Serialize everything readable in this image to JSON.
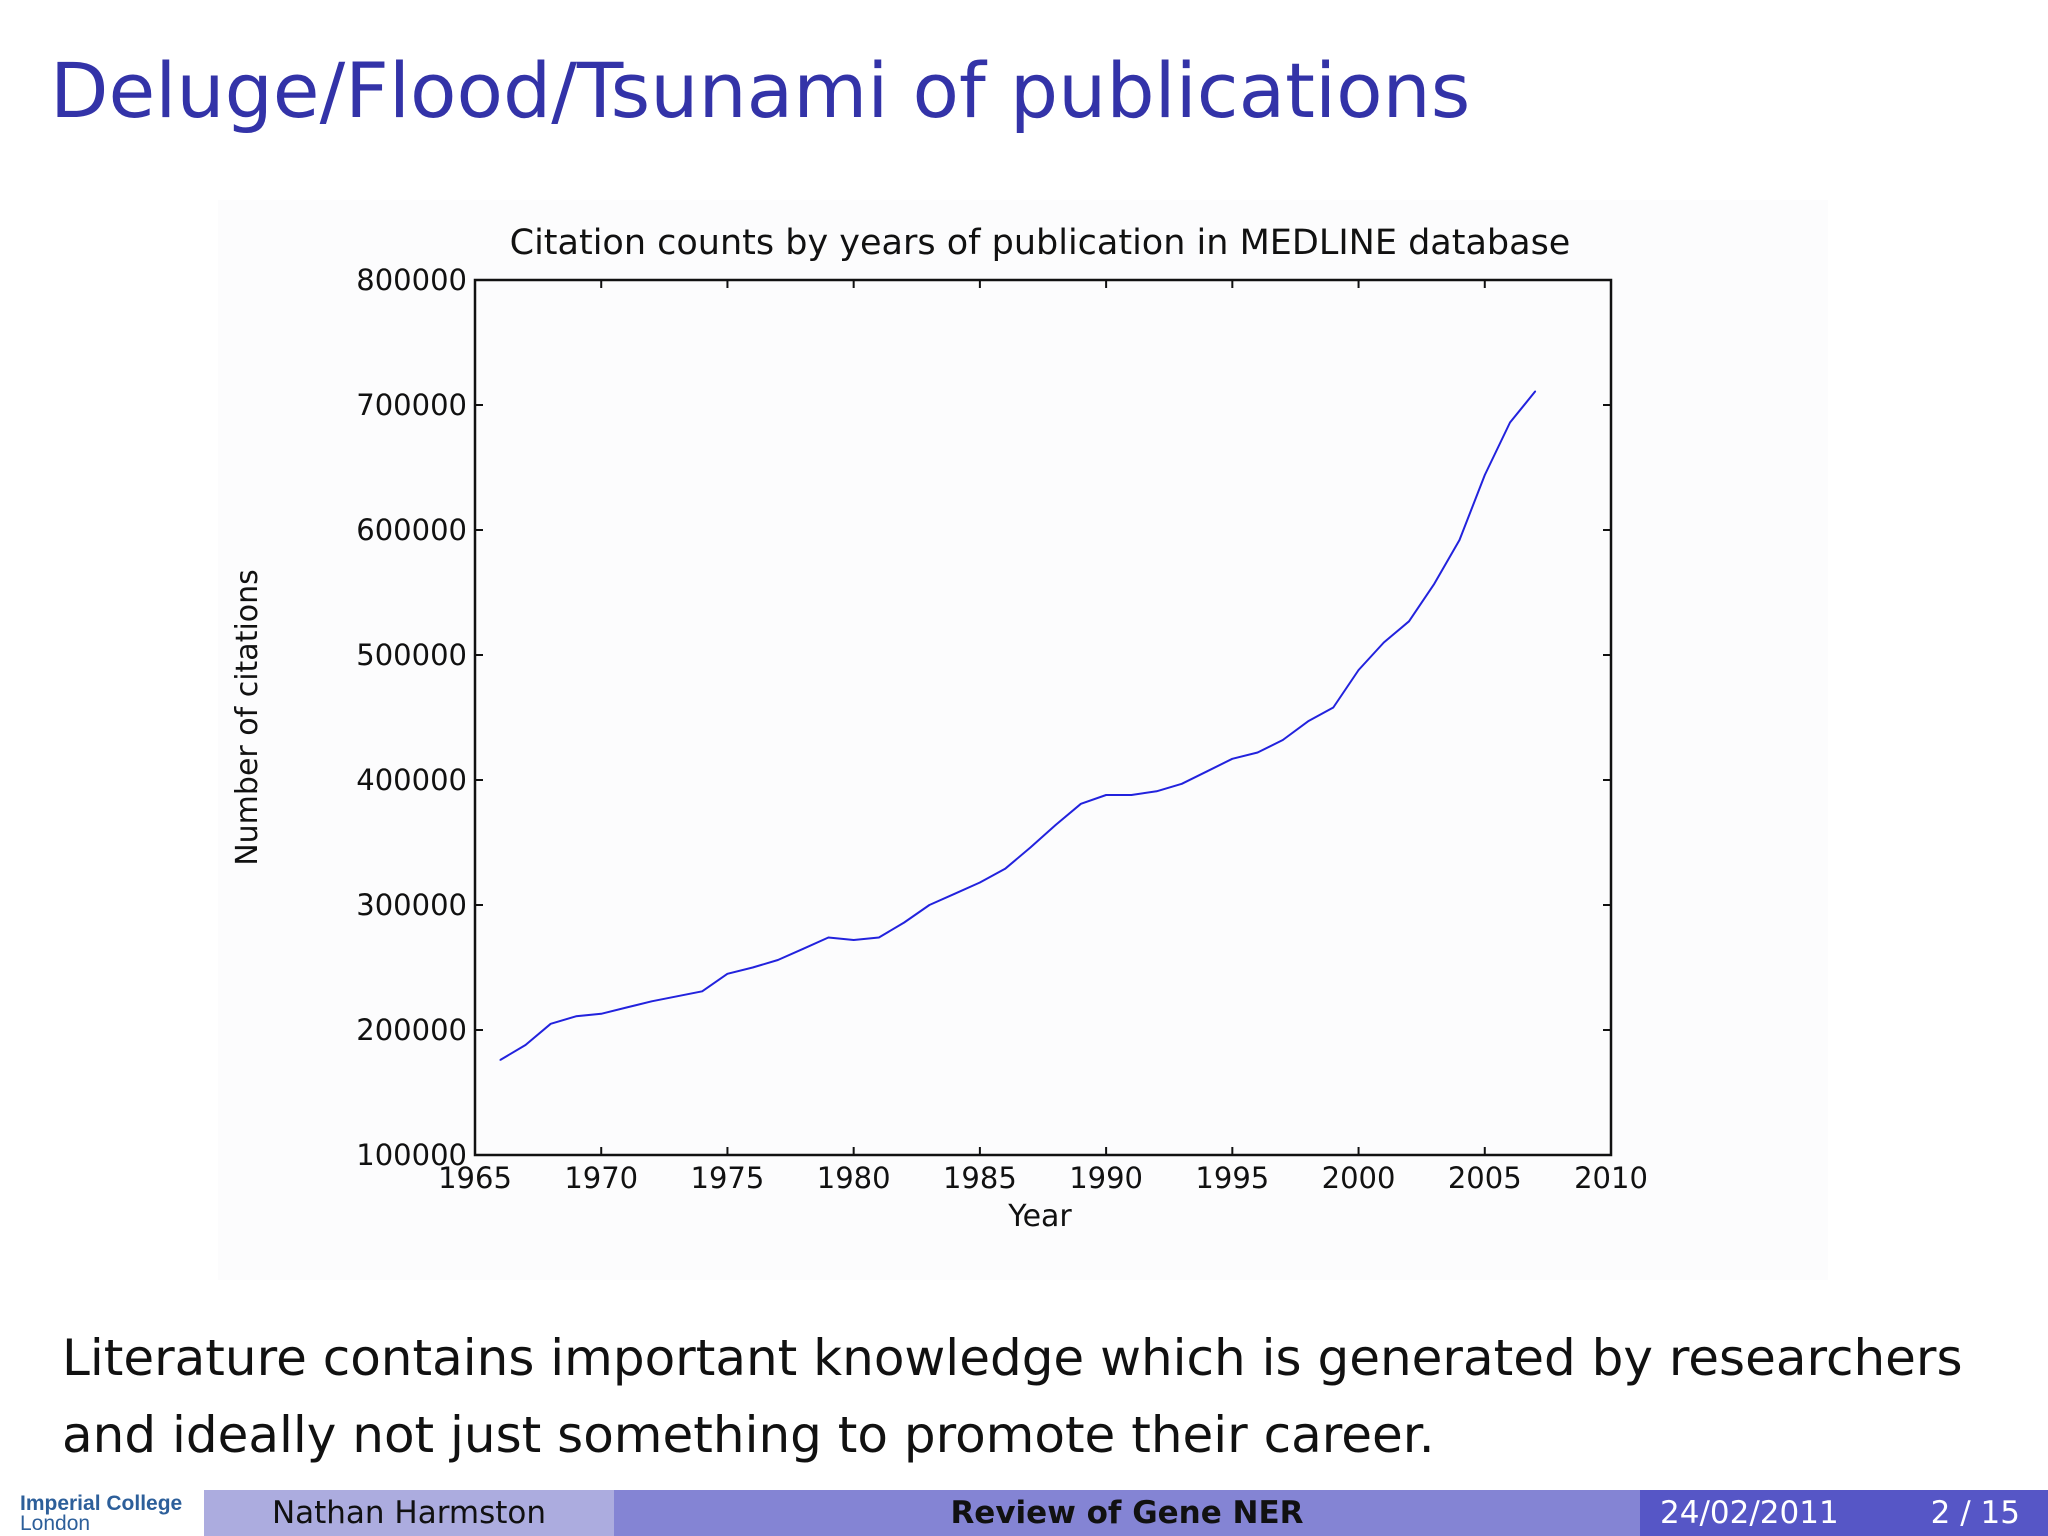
{
  "slide": {
    "title": "Deluge/Flood/Tsunami of publications",
    "body": "Literature contains important knowledge which is generated by researchers and ideally not just something to promote their career."
  },
  "footer": {
    "logo_line1": "Imperial College",
    "logo_line2": "London",
    "author": "Nathan Harmston",
    "talk_title": "Review of Gene NER",
    "date": "24/02/2011",
    "page": "2 / 15"
  },
  "colors": {
    "title": "#3333a8",
    "line": "#2222dd",
    "footer_author_bg": "#acacdf",
    "footer_title_bg": "#8484d4",
    "footer_date_bg": "#5656c6"
  },
  "chart_data": {
    "type": "line",
    "title": "Citation counts by years of publication in MEDLINE database",
    "xlabel": "Year",
    "ylabel": "Number of citations",
    "xlim": [
      1965,
      2010
    ],
    "ylim": [
      100000,
      800000
    ],
    "xticks": [
      1965,
      1970,
      1975,
      1980,
      1985,
      1990,
      1995,
      2000,
      2005,
      2010
    ],
    "yticks": [
      100000,
      200000,
      300000,
      400000,
      500000,
      600000,
      700000,
      800000
    ],
    "grid": false,
    "series": [
      {
        "x": [
          1966,
          1967,
          1968,
          1969,
          1970,
          1971,
          1972,
          1973,
          1974,
          1975,
          1976,
          1977,
          1978,
          1979,
          1980,
          1981,
          1982,
          1983,
          1984,
          1985,
          1986,
          1987,
          1988,
          1989,
          1990,
          1991,
          1992,
          1993,
          1994,
          1995,
          1996,
          1997,
          1998,
          1999,
          2000,
          2001,
          2002,
          2003,
          2004,
          2005,
          2006,
          2007
        ],
        "y": [
          176000,
          188000,
          205000,
          211000,
          213000,
          218000,
          223000,
          227000,
          231000,
          245000,
          250000,
          256000,
          265000,
          274000,
          272000,
          274000,
          286000,
          300000,
          309000,
          318000,
          329000,
          346000,
          364000,
          381000,
          388000,
          388000,
          391000,
          397000,
          407000,
          417000,
          422000,
          432000,
          447000,
          458000,
          488000,
          510000,
          527000,
          557000,
          592000,
          644000,
          686000,
          711000
        ]
      }
    ]
  }
}
